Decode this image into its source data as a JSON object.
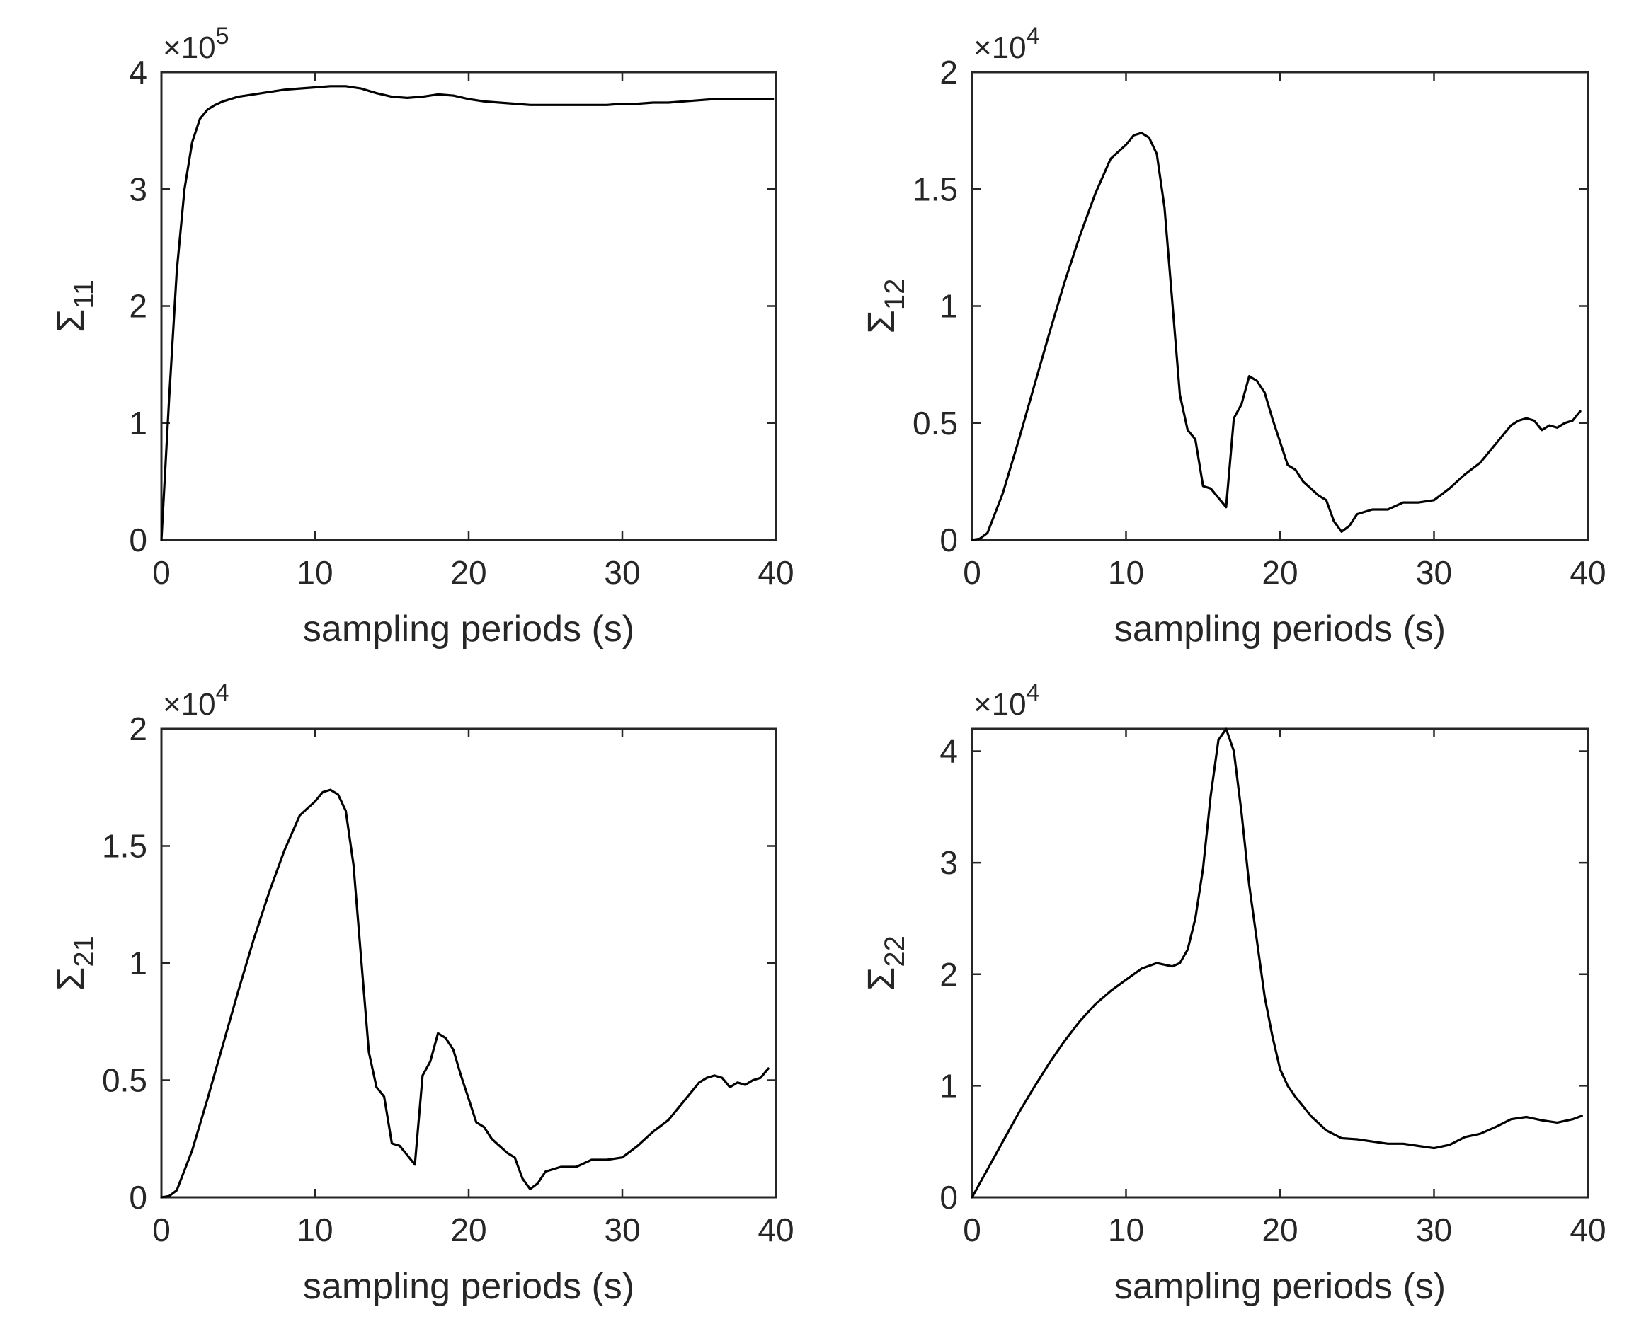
{
  "figure": {
    "line_color": "#000000",
    "axis_color": "#262626",
    "background": "#ffffff"
  },
  "chart_data": [
    {
      "type": "line",
      "id": "sigma11",
      "ylabel_symbol": "Σ",
      "ylabel_subscript": "11",
      "xlabel": "sampling periods (s)",
      "xlim": [
        0,
        40
      ],
      "ylim": [
        0,
        4
      ],
      "xticks": [
        0,
        10,
        20,
        30,
        40
      ],
      "yticks": [
        0,
        1,
        2,
        3,
        4
      ],
      "ytick_labels": [
        "0",
        "1",
        "2",
        "3",
        "4"
      ],
      "xtick_labels": [
        "0",
        "10",
        "20",
        "30",
        "40"
      ],
      "exponent_prefix": "×10",
      "exponent": "5",
      "series": [
        {
          "name": "Σ11",
          "x": [
            0,
            0.5,
            1,
            1.5,
            2,
            2.5,
            3,
            3.5,
            4,
            5,
            6,
            7,
            8,
            9,
            10,
            11,
            12,
            13,
            14,
            15,
            16,
            17,
            18,
            19,
            20,
            21,
            22,
            23,
            24,
            25,
            26,
            27,
            28,
            29,
            30,
            31,
            32,
            33,
            34,
            35,
            36,
            37,
            38,
            39,
            39.8
          ],
          "y": [
            0,
            1.2,
            2.3,
            3.0,
            3.4,
            3.6,
            3.68,
            3.72,
            3.75,
            3.79,
            3.81,
            3.83,
            3.85,
            3.86,
            3.87,
            3.88,
            3.88,
            3.86,
            3.82,
            3.79,
            3.78,
            3.79,
            3.81,
            3.8,
            3.77,
            3.75,
            3.74,
            3.73,
            3.72,
            3.72,
            3.72,
            3.72,
            3.72,
            3.72,
            3.73,
            3.73,
            3.74,
            3.74,
            3.75,
            3.76,
            3.77,
            3.77,
            3.77,
            3.77,
            3.77
          ]
        }
      ]
    },
    {
      "type": "line",
      "id": "sigma12",
      "ylabel_symbol": "Σ",
      "ylabel_subscript": "12",
      "xlabel": "sampling periods (s)",
      "xlim": [
        0,
        40
      ],
      "ylim": [
        0,
        2
      ],
      "xticks": [
        0,
        10,
        20,
        30,
        40
      ],
      "yticks": [
        0,
        0.5,
        1,
        1.5,
        2
      ],
      "ytick_labels": [
        "0",
        "0.5",
        "1",
        "1.5",
        "2"
      ],
      "xtick_labels": [
        "0",
        "10",
        "20",
        "30",
        "40"
      ],
      "exponent_prefix": "×10",
      "exponent": "4",
      "series": [
        {
          "name": "Σ12",
          "x": [
            0,
            0.5,
            1,
            2,
            3,
            4,
            5,
            6,
            7,
            8,
            9,
            9.5,
            10,
            10.5,
            11,
            11.5,
            12,
            12.5,
            13,
            13.5,
            14,
            14.5,
            15,
            15.5,
            16,
            16.5,
            17,
            17.5,
            18,
            18.5,
            19,
            19.5,
            20,
            20.5,
            21,
            21.5,
            22,
            22.5,
            23,
            23.5,
            24,
            24.5,
            25,
            26,
            27,
            28,
            29,
            30,
            31,
            32,
            33,
            34,
            35,
            35.5,
            36,
            36.5,
            37,
            37.5,
            38,
            38.5,
            39,
            39.5
          ],
          "y": [
            0,
            0.005,
            0.03,
            0.2,
            0.42,
            0.65,
            0.88,
            1.1,
            1.3,
            1.48,
            1.63,
            1.66,
            1.69,
            1.73,
            1.74,
            1.72,
            1.65,
            1.42,
            1.02,
            0.62,
            0.47,
            0.43,
            0.23,
            0.22,
            0.18,
            0.14,
            0.52,
            0.58,
            0.7,
            0.68,
            0.63,
            0.52,
            0.42,
            0.32,
            0.3,
            0.25,
            0.22,
            0.19,
            0.17,
            0.08,
            0.035,
            0.06,
            0.11,
            0.13,
            0.13,
            0.16,
            0.16,
            0.17,
            0.22,
            0.28,
            0.33,
            0.41,
            0.49,
            0.51,
            0.52,
            0.51,
            0.47,
            0.49,
            0.48,
            0.5,
            0.51,
            0.55
          ]
        }
      ]
    },
    {
      "type": "line",
      "id": "sigma21",
      "ylabel_symbol": "Σ",
      "ylabel_subscript": "21",
      "xlabel": "sampling periods (s)",
      "xlim": [
        0,
        40
      ],
      "ylim": [
        0,
        2
      ],
      "xticks": [
        0,
        10,
        20,
        30,
        40
      ],
      "yticks": [
        0,
        0.5,
        1,
        1.5,
        2
      ],
      "ytick_labels": [
        "0",
        "0.5",
        "1",
        "1.5",
        "2"
      ],
      "xtick_labels": [
        "0",
        "10",
        "20",
        "30",
        "40"
      ],
      "exponent_prefix": "×10",
      "exponent": "4",
      "series": [
        {
          "name": "Σ21",
          "x": [
            0,
            0.5,
            1,
            2,
            3,
            4,
            5,
            6,
            7,
            8,
            9,
            9.5,
            10,
            10.5,
            11,
            11.5,
            12,
            12.5,
            13,
            13.5,
            14,
            14.5,
            15,
            15.5,
            16,
            16.5,
            17,
            17.5,
            18,
            18.5,
            19,
            19.5,
            20,
            20.5,
            21,
            21.5,
            22,
            22.5,
            23,
            23.5,
            24,
            24.5,
            25,
            26,
            27,
            28,
            29,
            30,
            31,
            32,
            33,
            34,
            35,
            35.5,
            36,
            36.5,
            37,
            37.5,
            38,
            38.5,
            39,
            39.5
          ],
          "y": [
            0,
            0.005,
            0.03,
            0.2,
            0.42,
            0.65,
            0.88,
            1.1,
            1.3,
            1.48,
            1.63,
            1.66,
            1.69,
            1.73,
            1.74,
            1.72,
            1.65,
            1.42,
            1.02,
            0.62,
            0.47,
            0.43,
            0.23,
            0.22,
            0.18,
            0.14,
            0.52,
            0.58,
            0.7,
            0.68,
            0.63,
            0.52,
            0.42,
            0.32,
            0.3,
            0.25,
            0.22,
            0.19,
            0.17,
            0.08,
            0.035,
            0.06,
            0.11,
            0.13,
            0.13,
            0.16,
            0.16,
            0.17,
            0.22,
            0.28,
            0.33,
            0.41,
            0.49,
            0.51,
            0.52,
            0.51,
            0.47,
            0.49,
            0.48,
            0.5,
            0.51,
            0.55
          ]
        }
      ]
    },
    {
      "type": "line",
      "id": "sigma22",
      "ylabel_symbol": "Σ",
      "ylabel_subscript": "22",
      "xlabel": "sampling periods (s)",
      "xlim": [
        0,
        40
      ],
      "ylim": [
        0,
        4.2
      ],
      "xticks": [
        0,
        10,
        20,
        30,
        40
      ],
      "yticks": [
        0,
        1,
        2,
        3,
        4
      ],
      "ytick_labels": [
        "0",
        "1",
        "2",
        "3",
        "4"
      ],
      "xtick_labels": [
        "0",
        "10",
        "20",
        "30",
        "40"
      ],
      "exponent_prefix": "×10",
      "exponent": "4",
      "series": [
        {
          "name": "Σ22",
          "x": [
            0,
            1,
            2,
            3,
            4,
            5,
            6,
            7,
            8,
            9,
            10,
            11,
            12,
            13,
            13.5,
            14,
            14.5,
            15,
            15.5,
            16,
            16.5,
            17,
            17.5,
            18,
            18.5,
            19,
            19.5,
            20,
            20.5,
            21,
            22,
            23,
            24,
            25,
            26,
            27,
            28,
            29,
            30,
            31,
            32,
            33,
            34,
            35,
            36,
            37,
            38,
            39,
            39.6
          ],
          "y": [
            0,
            0.25,
            0.5,
            0.75,
            0.98,
            1.2,
            1.4,
            1.58,
            1.73,
            1.85,
            1.95,
            2.05,
            2.1,
            2.07,
            2.1,
            2.22,
            2.5,
            2.95,
            3.6,
            4.1,
            4.2,
            4.0,
            3.45,
            2.8,
            2.3,
            1.8,
            1.45,
            1.15,
            1.0,
            0.9,
            0.73,
            0.6,
            0.53,
            0.52,
            0.5,
            0.48,
            0.48,
            0.46,
            0.44,
            0.47,
            0.54,
            0.57,
            0.63,
            0.7,
            0.72,
            0.69,
            0.67,
            0.7,
            0.73
          ]
        }
      ]
    }
  ]
}
